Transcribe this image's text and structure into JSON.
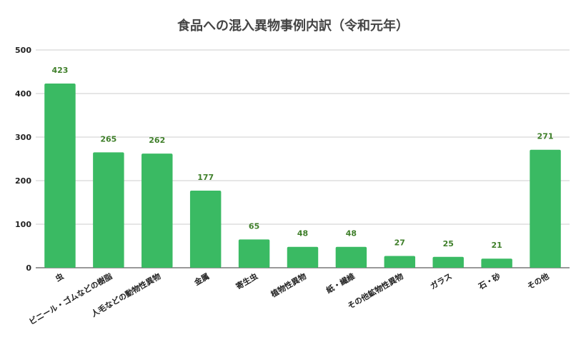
{
  "colors": {
    "bar": "#3aba63",
    "data_label": "#3f7f2a",
    "grid": "#cccccc",
    "axis": "#333333"
  },
  "chart_data": {
    "type": "bar",
    "title": "食品への混入異物事例内訳（令和元年）",
    "xlabel": "",
    "ylabel": "",
    "ylim": [
      0,
      500
    ],
    "yticks": [
      0,
      100,
      200,
      300,
      400,
      500
    ],
    "grid": true,
    "categories": [
      "虫",
      "ビニール・ゴムなどの樹脂",
      "人毛などの動物性異物",
      "金属",
      "寄生虫",
      "植物性異物",
      "紙・繊維",
      "その他鉱物性異物",
      "ガラス",
      "石・砂",
      "その他"
    ],
    "values": [
      423,
      265,
      262,
      177,
      65,
      48,
      48,
      27,
      25,
      21,
      271
    ]
  }
}
